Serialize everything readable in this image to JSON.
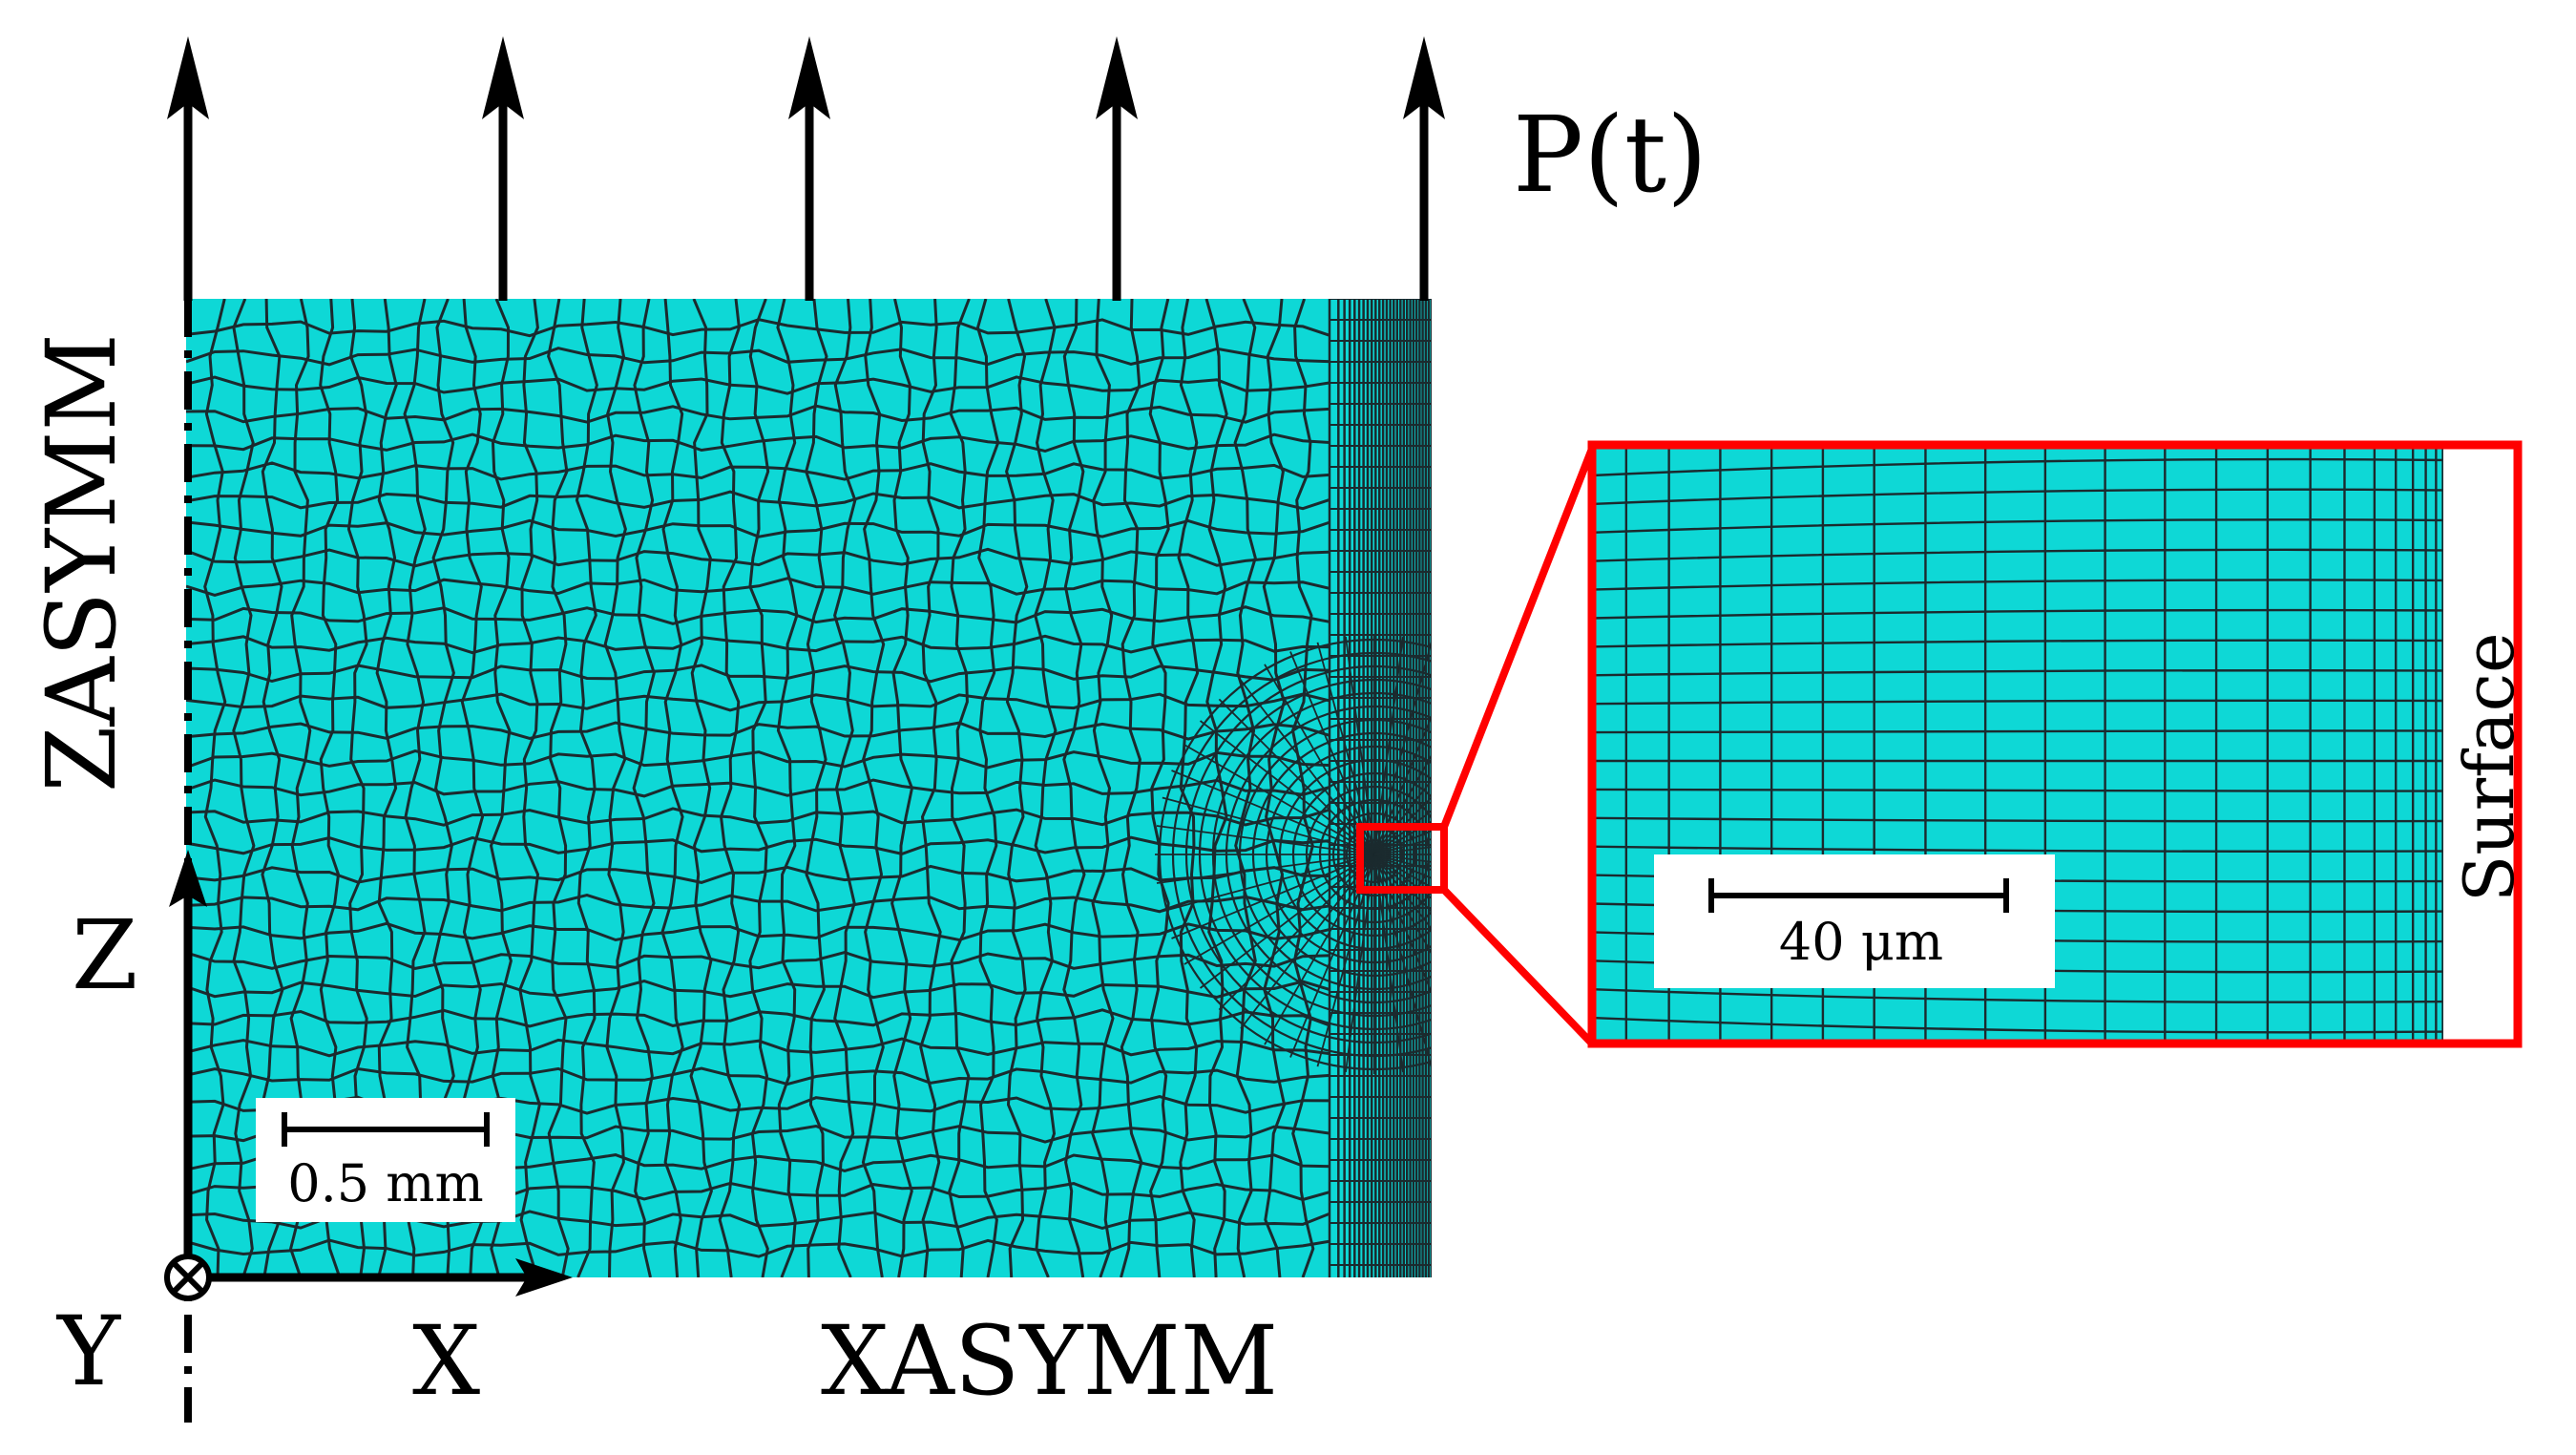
{
  "labels": {
    "load": "P(t)",
    "left_bc": "ZASYMM",
    "bottom_bc": "XASYMM",
    "axis_z": "Z",
    "axis_x": "X",
    "axis_y": "Y",
    "surface": "Surface"
  },
  "scale_bars": {
    "main": "0.5 mm",
    "detail": "40 μm"
  },
  "colors": {
    "mesh_fill": "#0ed8d6",
    "mesh_line": "#1b2a2e",
    "zoom_frame": "#ff0000",
    "ink": "#000000"
  }
}
